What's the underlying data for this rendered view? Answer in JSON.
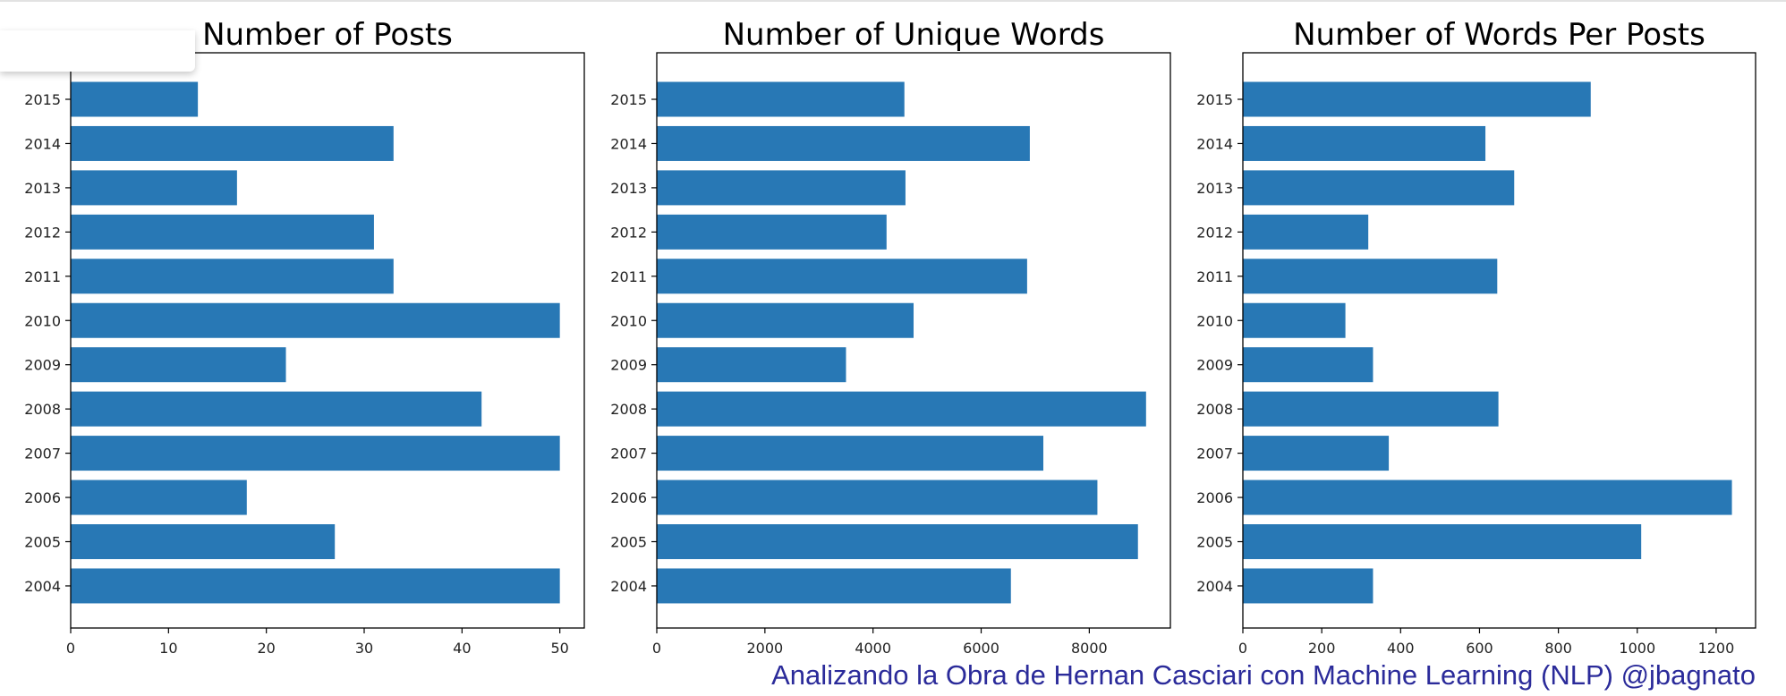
{
  "colors": {
    "bar": "#2878b5",
    "caption": "#2b2b9a"
  },
  "caption": "Analizando la Obra de Hernan Casciari con Machine Learning (NLP) @jbagnato",
  "chart_data": [
    {
      "type": "bar",
      "orientation": "horizontal",
      "title": "Number of Posts",
      "categories": [
        "2004",
        "2005",
        "2006",
        "2007",
        "2008",
        "2009",
        "2010",
        "2011",
        "2012",
        "2013",
        "2014",
        "2015"
      ],
      "values": [
        50,
        27,
        18,
        50,
        42,
        22,
        50,
        33,
        31,
        17,
        33,
        13
      ],
      "xlim": [
        0,
        52.5
      ],
      "xticks": [
        0,
        10,
        20,
        30,
        40,
        50
      ],
      "xlabel": "",
      "ylabel": "",
      "grid": false
    },
    {
      "type": "bar",
      "orientation": "horizontal",
      "title": "Number of Unique Words",
      "categories": [
        "2004",
        "2005",
        "2006",
        "2007",
        "2008",
        "2009",
        "2010",
        "2011",
        "2012",
        "2013",
        "2014",
        "2015"
      ],
      "values": [
        6550,
        8900,
        8150,
        7150,
        9050,
        3500,
        4750,
        6850,
        4250,
        4600,
        6900,
        4580
      ],
      "xlim": [
        0,
        9500
      ],
      "xticks": [
        0,
        2000,
        4000,
        6000,
        8000
      ],
      "xlabel": "",
      "ylabel": "",
      "grid": false
    },
    {
      "type": "bar",
      "orientation": "horizontal",
      "title": "Number of Words Per Posts",
      "categories": [
        "2004",
        "2005",
        "2006",
        "2007",
        "2008",
        "2009",
        "2010",
        "2011",
        "2012",
        "2013",
        "2014",
        "2015"
      ],
      "values": [
        330,
        1010,
        1240,
        370,
        648,
        330,
        260,
        645,
        318,
        688,
        615,
        882
      ],
      "xlim": [
        0,
        1300
      ],
      "xticks": [
        0,
        200,
        400,
        600,
        800,
        1000,
        1200
      ],
      "xlabel": "",
      "ylabel": "",
      "grid": false
    }
  ]
}
